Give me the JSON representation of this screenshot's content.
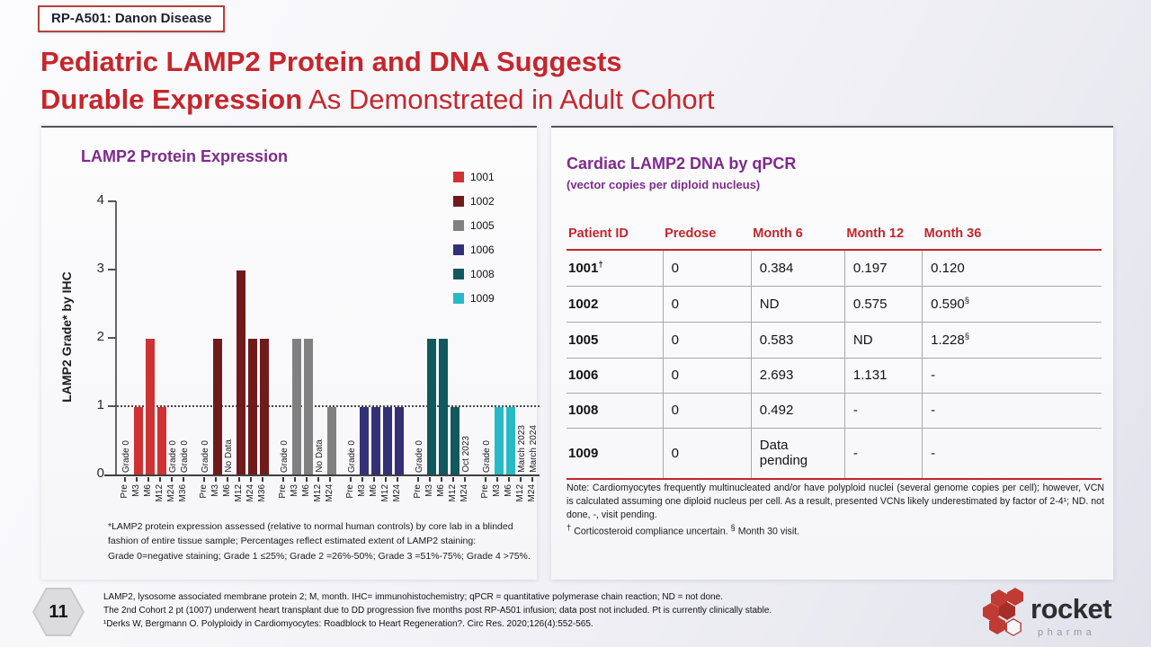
{
  "badge": {
    "label": "RP-A501: Danon Disease"
  },
  "title": {
    "line1": "Pediatric LAMP2 Protein and DNA Suggests",
    "line2_bold": "Durable Expression",
    "line2_rest": " As Demonstrated in Adult Cohort"
  },
  "colors": {
    "title_red": "#C5262C",
    "heading_purple": "#7E2B8C",
    "table_header_red": "#C0272D"
  },
  "chart_data": {
    "type": "bar",
    "title": "LAMP2 Protein Expression",
    "ylabel": "LAMP2 Grade* by IHC",
    "ylim": [
      0,
      4
    ],
    "yticks": [
      0,
      1,
      2,
      3,
      4
    ],
    "reference_line_y": 1,
    "legend_position": "right",
    "grid": false,
    "groups": [
      {
        "name": "1001",
        "color": "#CE3232",
        "points": [
          {
            "x": "Pre",
            "label": "Grade 0"
          },
          {
            "x": "M3",
            "value": 1
          },
          {
            "x": "M6",
            "value": 2
          },
          {
            "x": "M12",
            "value": 1
          },
          {
            "x": "M24",
            "label": "Grade 0"
          },
          {
            "x": "M36",
            "label": "Grade 0"
          }
        ]
      },
      {
        "name": "1002",
        "color": "#701B1B",
        "points": [
          {
            "x": "Pre",
            "label": "Grade 0"
          },
          {
            "x": "M3",
            "value": 2
          },
          {
            "x": "M6",
            "label": "No Data"
          },
          {
            "x": "M12",
            "value": 3
          },
          {
            "x": "M24",
            "value": 2
          },
          {
            "x": "M36",
            "value": 2
          }
        ]
      },
      {
        "name": "1005",
        "color": "#808080",
        "points": [
          {
            "x": "Pre",
            "label": "Grade 0"
          },
          {
            "x": "M3",
            "value": 2
          },
          {
            "x": "M6",
            "value": 2
          },
          {
            "x": "M12",
            "label": "No Data"
          },
          {
            "x": "M24",
            "value": 1
          }
        ]
      },
      {
        "name": "1006",
        "color": "#343077",
        "points": [
          {
            "x": "Pre",
            "label": "Grade 0"
          },
          {
            "x": "M3",
            "value": 1
          },
          {
            "x": "M6",
            "value": 1
          },
          {
            "x": "M12",
            "value": 1
          },
          {
            "x": "M24",
            "value": 1
          }
        ]
      },
      {
        "name": "1008",
        "color": "#10595E",
        "points": [
          {
            "x": "Pre",
            "label": "Grade 0"
          },
          {
            "x": "M3",
            "value": 2
          },
          {
            "x": "M6",
            "value": 2
          },
          {
            "x": "M12",
            "value": 1
          },
          {
            "x": "M24",
            "label": "Oct 2023"
          }
        ]
      },
      {
        "name": "1009",
        "color": "#27BAC6",
        "points": [
          {
            "x": "Pre",
            "label": "Grade 0"
          },
          {
            "x": "M3",
            "value": 1
          },
          {
            "x": "M6",
            "value": 1
          },
          {
            "x": "M12",
            "label": "March 2023"
          },
          {
            "x": "M24",
            "label": "March 2024"
          }
        ]
      }
    ],
    "footnote_lines": [
      "*LAMP2 protein expression assessed (relative to normal human controls) by core lab in a blinded",
      "fashion of entire tissue sample; Percentages reflect estimated extent of LAMP2 staining:",
      "Grade 0=negative staining; Grade 1 ≤25%; Grade 2 =26%-50%; Grade 3 =51%-75%; Grade 4 >75%."
    ]
  },
  "table": {
    "title": "Cardiac LAMP2 DNA by qPCR",
    "subtitle": "(vector copies per diploid nucleus)",
    "headers": [
      "Patient ID",
      "Predose",
      "Month 6",
      "Month 12",
      "Month 36"
    ],
    "rows": [
      {
        "id": "1001",
        "id_sup": "†",
        "values": [
          {
            "v": "0"
          },
          {
            "v": "0.384"
          },
          {
            "v": "0.197"
          },
          {
            "v": "0.120"
          }
        ]
      },
      {
        "id": "1002",
        "id_sup": "",
        "values": [
          {
            "v": "0"
          },
          {
            "v": "ND"
          },
          {
            "v": "0.575"
          },
          {
            "v": "0.590",
            "sup": "§"
          }
        ]
      },
      {
        "id": "1005",
        "id_sup": "",
        "values": [
          {
            "v": "0"
          },
          {
            "v": "0.583"
          },
          {
            "v": "ND"
          },
          {
            "v": "1.228",
            "sup": "§"
          }
        ]
      },
      {
        "id": "1006",
        "id_sup": "",
        "values": [
          {
            "v": "0"
          },
          {
            "v": "2.693"
          },
          {
            "v": "1.131"
          },
          {
            "v": "-"
          }
        ]
      },
      {
        "id": "1008",
        "id_sup": "",
        "values": [
          {
            "v": "0"
          },
          {
            "v": "0.492"
          },
          {
            "v": "-"
          },
          {
            "v": "-"
          }
        ]
      },
      {
        "id": "1009",
        "id_sup": "",
        "values": [
          {
            "v": "0"
          },
          {
            "v": "Data pending"
          },
          {
            "v": "-"
          },
          {
            "v": "-"
          }
        ]
      }
    ],
    "note": "Note: Cardiomyocytes frequently multinucleated and/or have polyploid nuclei (several genome copies per cell); however, VCN is calculated assuming one diploid nucleus per cell. As a result, presented VCNs likely underestimated by factor of 2-4¹; ND.  not done, -, visit pending.",
    "note2_parts": [
      {
        "sup": "†"
      },
      {
        "t": " Corticosteroid compliance uncertain. "
      },
      {
        "sup": "§"
      },
      {
        "t": " Month 30 visit."
      }
    ]
  },
  "footer": {
    "page_number": "11",
    "lines": [
      "LAMP2, lysosome associated membrane protein 2; M, month.  IHC= immunohistochemistry; qPCR = quantitative polymerase chain reaction; ND = not done.",
      "The 2nd Cohort 2 pt (1007) underwent heart transplant due to DD progression five months post RP-A501 infusion; data post not included. Pt is currently clinically stable.",
      "¹Derks W, Bergmann O. Polyploidy in Cardiomyocytes: Roadblock to Heart Regeneration?. Circ Res. 2020;126(4):552-565."
    ]
  },
  "logo": {
    "brand": "rocket",
    "sub": "pharma"
  }
}
